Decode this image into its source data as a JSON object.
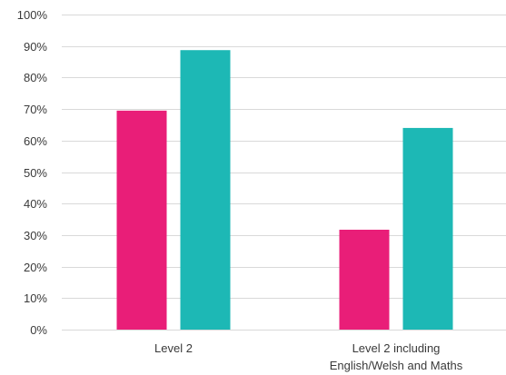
{
  "chart_data": {
    "type": "bar",
    "categories": [
      "Level 2",
      "Level 2 including English/Welsh and Maths"
    ],
    "category_lines": [
      [
        "Level 2"
      ],
      [
        "Level 2 including",
        "English/Welsh and Maths"
      ]
    ],
    "series": [
      {
        "values": [
          69.5,
          31.7
        ],
        "color": "#e91e78"
      },
      {
        "values": [
          88.7,
          64.0
        ],
        "color": "#1db8b5"
      }
    ],
    "ylim": [
      0,
      100
    ],
    "yticks": [
      0,
      10,
      20,
      30,
      40,
      50,
      60,
      70,
      80,
      90,
      100
    ],
    "ytick_labels": [
      "0%",
      "10%",
      "20%",
      "30%",
      "40%",
      "50%",
      "60%",
      "70%",
      "80%",
      "90%",
      "100%"
    ],
    "grid": true,
    "legend": "none"
  }
}
